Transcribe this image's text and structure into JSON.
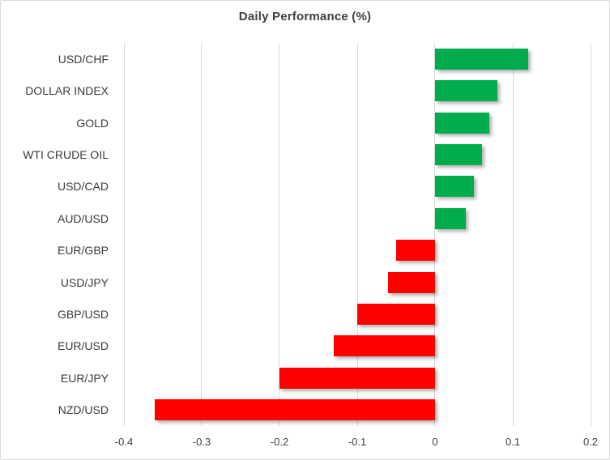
{
  "chart_data": {
    "type": "bar",
    "orientation": "horizontal",
    "title": "Daily Performance (%)",
    "categories": [
      "USD/CHF",
      "DOLLAR INDEX",
      "GOLD",
      "WTI CRUDE OIL",
      "USD/CAD",
      "AUD/USD",
      "EUR/GBP",
      "USD/JPY",
      "GBP/USD",
      "EUR/USD",
      "EUR/JPY",
      "NZD/USD"
    ],
    "values": [
      0.12,
      0.08,
      0.07,
      0.06,
      0.05,
      0.04,
      -0.05,
      -0.06,
      -0.1,
      -0.13,
      -0.2,
      -0.36
    ],
    "xlabel": "",
    "ylabel": "",
    "xlim": [
      -0.4,
      0.2
    ],
    "xticks": [
      -0.4,
      -0.3,
      -0.2,
      -0.1,
      0,
      0.1,
      0.2
    ],
    "xtick_labels": [
      "-0.4",
      "-0.3",
      "-0.2",
      "-0.1",
      "0",
      "0.1",
      "0.2"
    ],
    "grid": true,
    "legend": false,
    "colors": {
      "positive": "#00ac4e",
      "negative": "#ff0000",
      "gridline": "#d9d9d9",
      "title_text": "#404040",
      "axis_text": "#3a3a3a",
      "frame_border": "#d8d8d8",
      "background": "#ffffff"
    }
  }
}
